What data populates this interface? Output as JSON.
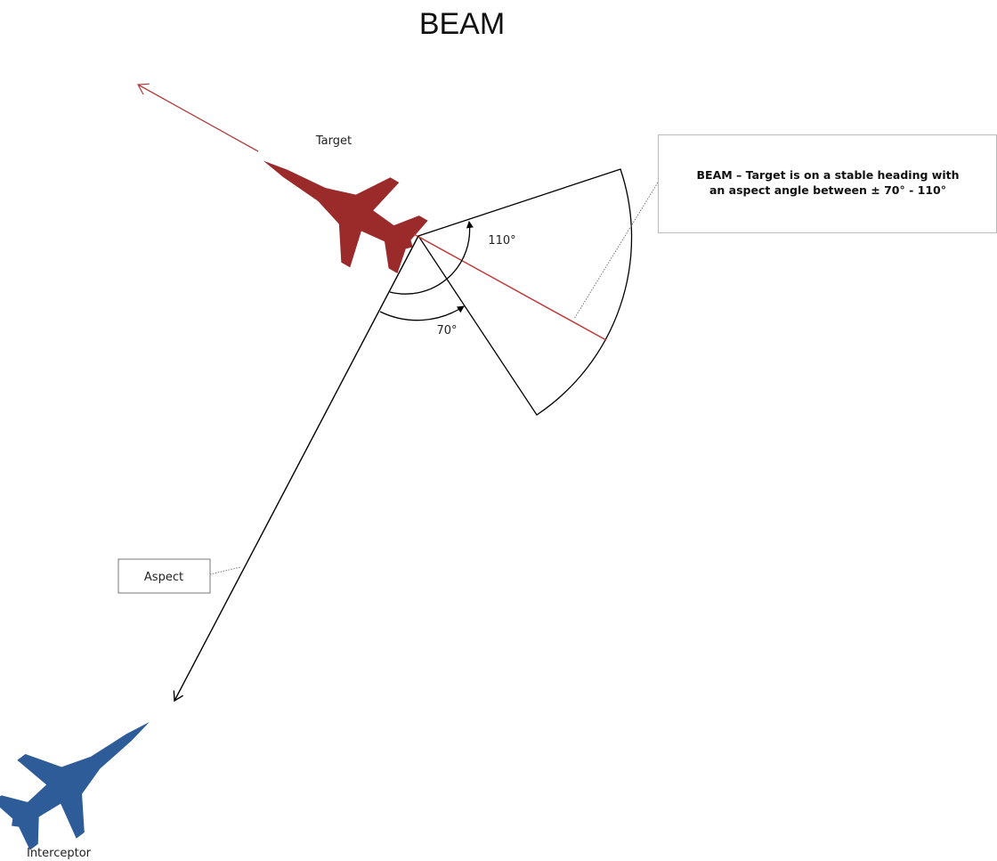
{
  "header": {
    "title": "BEAM"
  },
  "labels": {
    "target": "Target",
    "interceptor": "Interceptor",
    "aspect": "Aspect",
    "angle_high": "110°",
    "angle_low": "70°"
  },
  "callout": {
    "lines": [
      "BEAM – Target is on a stable heading with",
      "an aspect angle between ± 70° - 110°"
    ]
  }
}
